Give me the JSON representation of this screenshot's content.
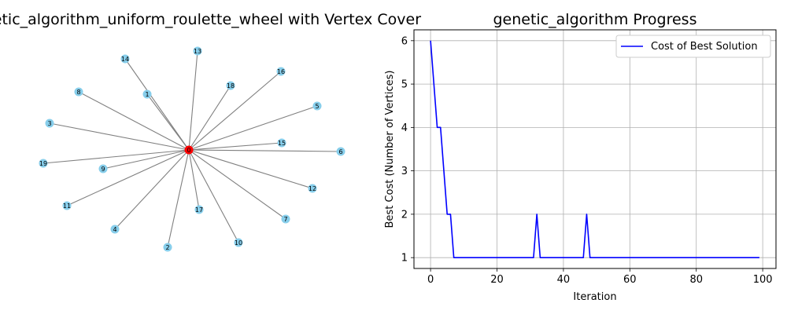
{
  "graph_panel": {
    "title": "genetic_algorithm_uniform_roulette_wheel with Vertex Cover",
    "center_node": "0",
    "node_color": "#87ceeb",
    "cover_color": "#ff0000",
    "edge_color": "#808080",
    "leaf_nodes": [
      "14",
      "13",
      "16",
      "18",
      "8",
      "1",
      "5",
      "3",
      "15",
      "6",
      "19",
      "9",
      "12",
      "11",
      "17",
      "7",
      "4",
      "10",
      "2"
    ]
  },
  "chart_data": {
    "type": "line",
    "title": "genetic_algorithm Progress",
    "xlabel": "Iteration",
    "ylabel": "Best Cost (Number of Vertices)",
    "xlim": [
      -5,
      104
    ],
    "ylim": [
      0.75,
      6.25
    ],
    "xticks": [
      0,
      20,
      40,
      60,
      80,
      100
    ],
    "yticks": [
      1,
      2,
      3,
      4,
      5,
      6
    ],
    "grid": true,
    "legend_position": "top-right",
    "series": [
      {
        "name": "Cost of Best Solution",
        "color": "#0000ff",
        "points": [
          [
            0,
            6
          ],
          [
            2,
            4
          ],
          [
            3,
            4
          ],
          [
            5,
            2
          ],
          [
            6,
            2
          ],
          [
            7,
            1
          ],
          [
            31,
            1
          ],
          [
            32,
            2
          ],
          [
            33,
            1
          ],
          [
            46,
            1
          ],
          [
            47,
            2
          ],
          [
            48,
            1
          ],
          [
            99,
            1
          ]
        ]
      }
    ]
  }
}
